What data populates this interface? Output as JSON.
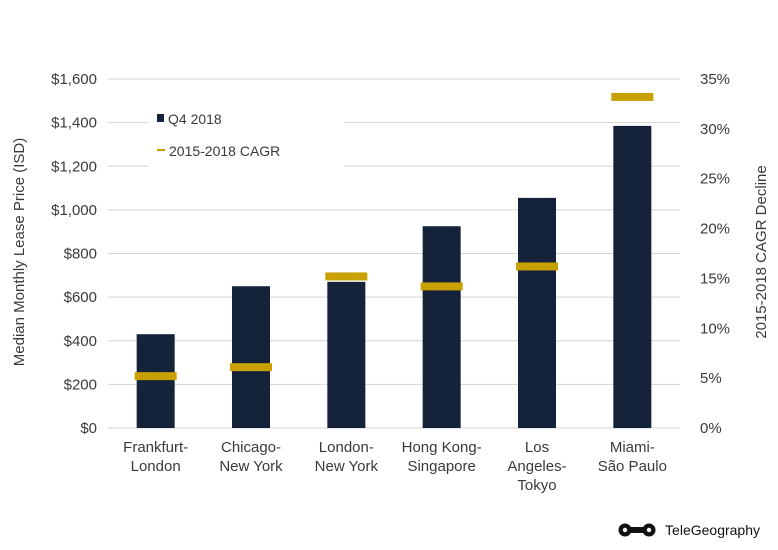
{
  "chart_data": {
    "type": "bar",
    "categories": [
      [
        "Frankfurt-",
        "London"
      ],
      [
        "Chicago-",
        "New York"
      ],
      [
        "London-",
        "New York"
      ],
      [
        "Hong Kong-",
        "Singapore"
      ],
      [
        "Los",
        "Angeles-",
        "Tokyo"
      ],
      [
        "Miami-",
        "São Paulo"
      ]
    ],
    "series": [
      {
        "name": "Q4 2018",
        "axis": "left",
        "kind": "bar",
        "color": "#14233a",
        "values": [
          430,
          650,
          670,
          925,
          1055,
          1385
        ]
      },
      {
        "name": "2015-2018 CAGR",
        "axis": "right",
        "kind": "marker",
        "color": "#c8a000",
        "values": [
          5.2,
          6.1,
          15.2,
          14.2,
          16.2,
          33.2
        ]
      }
    ],
    "ylabel": "Median Monthly Lease Price (ISD)",
    "y2label": "2015-2018 CAGR Decline",
    "ylim": [
      0,
      1600
    ],
    "y2lim": [
      0,
      35
    ],
    "y_ticks": [
      "$0",
      "$200",
      "$400",
      "$600",
      "$800",
      "$1,000",
      "$1,200",
      "$1,400",
      "$1,600"
    ],
    "y2_ticks": [
      "0%",
      "5%",
      "10%",
      "15%",
      "20%",
      "25%",
      "30%",
      "35%"
    ],
    "grid": true,
    "legend_position": "top-left"
  },
  "brand": {
    "name": "TeleGeography",
    "icon": "telegeography-logo-icon"
  }
}
